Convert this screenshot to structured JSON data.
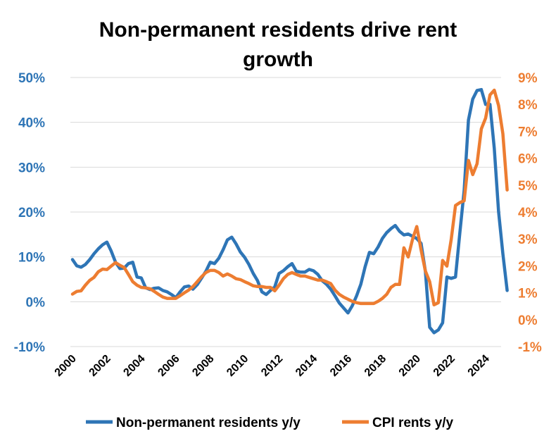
{
  "chart_data": {
    "type": "line",
    "title": "Non-permanent residents drive rent growth",
    "title_lines": [
      "Non-permanent residents drive rent",
      "growth"
    ],
    "xlabel": "",
    "x_ticks": [
      "2000",
      "2002",
      "2004",
      "2006",
      "2008",
      "2010",
      "2012",
      "2014",
      "2016",
      "2018",
      "2020",
      "2022",
      "2024"
    ],
    "xlim": [
      2000,
      2025.3
    ],
    "y_left": {
      "label": "",
      "ticks": [
        "-10%",
        "0%",
        "10%",
        "20%",
        "30%",
        "40%",
        "50%"
      ],
      "ylim": [
        -10,
        50
      ],
      "color": "#2E75B6"
    },
    "y_right": {
      "label": "",
      "ticks": [
        "-1%",
        "0%",
        "1%",
        "2%",
        "3%",
        "4%",
        "5%",
        "6%",
        "7%",
        "8%",
        "9%"
      ],
      "ylim": [
        -1,
        9
      ],
      "color": "#ED7D31"
    },
    "grid": true,
    "legend_position": "bottom",
    "x": [
      2000.0,
      2000.25,
      2000.5,
      2000.75,
      2001.0,
      2001.25,
      2001.5,
      2001.75,
      2002.0,
      2002.25,
      2002.5,
      2002.75,
      2003.0,
      2003.25,
      2003.5,
      2003.75,
      2004.0,
      2004.25,
      2004.5,
      2004.75,
      2005.0,
      2005.25,
      2005.5,
      2005.75,
      2006.0,
      2006.25,
      2006.5,
      2006.75,
      2007.0,
      2007.25,
      2007.5,
      2007.75,
      2008.0,
      2008.25,
      2008.5,
      2008.75,
      2009.0,
      2009.25,
      2009.5,
      2009.75,
      2010.0,
      2010.25,
      2010.5,
      2010.75,
      2011.0,
      2011.25,
      2011.5,
      2011.75,
      2012.0,
      2012.25,
      2012.5,
      2012.75,
      2013.0,
      2013.25,
      2013.5,
      2013.75,
      2014.0,
      2014.25,
      2014.5,
      2014.75,
      2015.0,
      2015.25,
      2015.5,
      2015.75,
      2016.0,
      2016.25,
      2016.5,
      2016.75,
      2017.0,
      2017.25,
      2017.5,
      2017.75,
      2018.0,
      2018.25,
      2018.5,
      2018.75,
      2019.0,
      2019.25,
      2019.5,
      2019.75,
      2020.0,
      2020.25,
      2020.5,
      2020.75,
      2021.0,
      2021.25,
      2021.5,
      2021.75,
      2022.0,
      2022.25,
      2022.5,
      2022.75,
      2023.0,
      2023.25,
      2023.5,
      2023.75,
      2024.0,
      2024.25,
      2024.5,
      2024.75,
      2025.0,
      2025.25
    ],
    "series": [
      {
        "name": "Non-permanent residents y/y",
        "axis": "left",
        "color": "#2E75B6",
        "values": [
          9.4,
          8.0,
          7.7,
          8.3,
          9.4,
          10.7,
          11.8,
          12.7,
          13.3,
          11.3,
          8.8,
          7.4,
          7.5,
          8.5,
          8.8,
          5.5,
          5.3,
          3.1,
          2.7,
          3.0,
          3.1,
          2.5,
          2.2,
          1.6,
          0.9,
          2.2,
          3.3,
          3.5,
          2.8,
          3.8,
          5.3,
          6.8,
          8.8,
          8.5,
          9.7,
          11.6,
          13.8,
          14.4,
          12.9,
          11.1,
          9.9,
          8.3,
          6.3,
          4.7,
          2.2,
          1.6,
          2.5,
          3.3,
          6.3,
          6.9,
          7.8,
          8.5,
          6.8,
          6.6,
          6.6,
          7.2,
          6.9,
          6.1,
          4.7,
          3.9,
          2.8,
          1.3,
          -0.3,
          -1.4,
          -2.5,
          -0.9,
          1.3,
          3.9,
          7.8,
          11.0,
          10.7,
          12.2,
          14.1,
          15.4,
          16.3,
          17.0,
          15.7,
          14.9,
          15.1,
          14.6,
          14.1,
          13.0,
          6.8,
          -5.7,
          -6.9,
          -6.3,
          -4.7,
          5.5,
          5.2,
          5.5,
          15.4,
          24.8,
          40.5,
          45.2,
          47.1,
          47.3,
          44.0,
          44.0,
          34.2,
          20.1,
          10.7,
          2.5
        ]
      },
      {
        "name": "CPI rents y/y",
        "axis": "right",
        "color": "#ED7D31",
        "values": [
          0.95,
          1.05,
          1.07,
          1.28,
          1.46,
          1.57,
          1.78,
          1.88,
          1.86,
          1.99,
          2.12,
          2.02,
          1.94,
          1.68,
          1.41,
          1.28,
          1.2,
          1.18,
          1.15,
          1.05,
          0.94,
          0.84,
          0.79,
          0.79,
          0.79,
          0.89,
          1.0,
          1.1,
          1.23,
          1.41,
          1.6,
          1.75,
          1.83,
          1.83,
          1.75,
          1.62,
          1.7,
          1.62,
          1.52,
          1.49,
          1.41,
          1.34,
          1.26,
          1.23,
          1.23,
          1.2,
          1.2,
          1.07,
          1.28,
          1.52,
          1.68,
          1.75,
          1.68,
          1.62,
          1.62,
          1.57,
          1.52,
          1.47,
          1.47,
          1.41,
          1.34,
          1.1,
          0.94,
          0.84,
          0.76,
          0.68,
          0.63,
          0.6,
          0.6,
          0.6,
          0.6,
          0.68,
          0.79,
          0.94,
          1.2,
          1.31,
          1.31,
          2.67,
          2.33,
          2.98,
          3.46,
          2.59,
          1.81,
          1.41,
          0.55,
          0.63,
          2.2,
          1.99,
          2.98,
          4.24,
          4.35,
          4.42,
          5.92,
          5.39,
          5.79,
          7.09,
          7.49,
          8.35,
          8.53,
          7.96,
          6.91,
          4.82
        ]
      }
    ]
  }
}
